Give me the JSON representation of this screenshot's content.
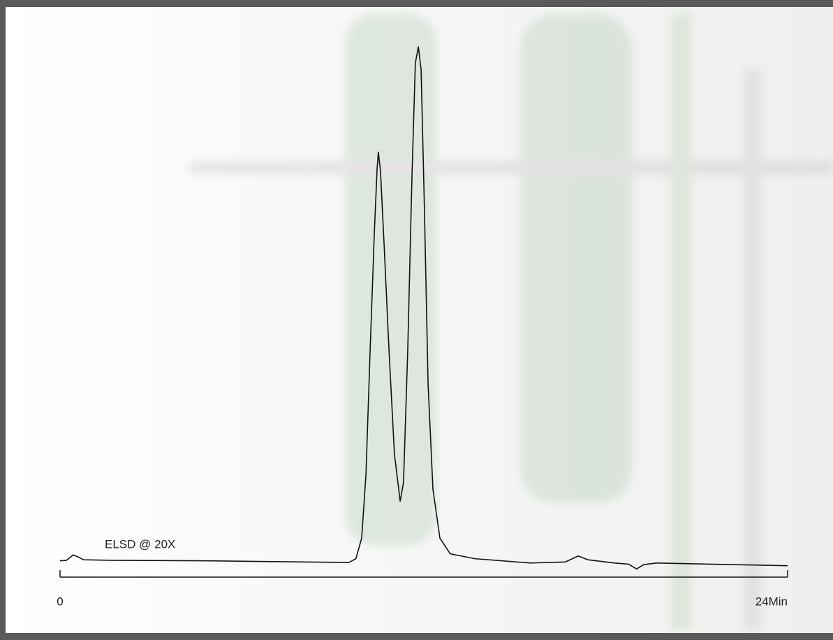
{
  "chart_data": {
    "type": "line",
    "annotation": "ELSD @ 20X",
    "xlim": [
      0,
      24
    ],
    "xticks": [
      0,
      {
        "value": 24,
        "label": "24Min"
      }
    ],
    "ylim": [
      0,
      100
    ],
    "series": [
      {
        "color": "#111111",
        "x": [
          0,
          0.21,
          0.44,
          0.6,
          0.78,
          1.7,
          4.93,
          9.53,
          9.76,
          9.95,
          10.09,
          10.23,
          10.37,
          10.46,
          10.5,
          10.57,
          10.69,
          10.85,
          11.03,
          11.22,
          11.33,
          11.47,
          11.61,
          11.72,
          11.82,
          11.91,
          12.02,
          12.14,
          12.3,
          12.53,
          12.87,
          13.68,
          15.52,
          16.67,
          17.09,
          17.41,
          18.29,
          18.75,
          19.02,
          19.25,
          19.67,
          24
        ],
        "values": [
          3.0,
          3.1,
          4.1,
          3.7,
          3.2,
          3.1,
          3.0,
          2.7,
          3.4,
          7.2,
          18.8,
          42.0,
          63.9,
          75.5,
          78.4,
          74.9,
          61.3,
          42.0,
          22.7,
          14.0,
          17.5,
          42.0,
          74.2,
          94.8,
          97.8,
          93.6,
          67.8,
          35.6,
          16.2,
          7.2,
          4.3,
          3.4,
          2.6,
          2.8,
          3.9,
          3.2,
          2.6,
          2.4,
          1.5,
          2.3,
          2.6,
          2.1
        ]
      }
    ]
  }
}
